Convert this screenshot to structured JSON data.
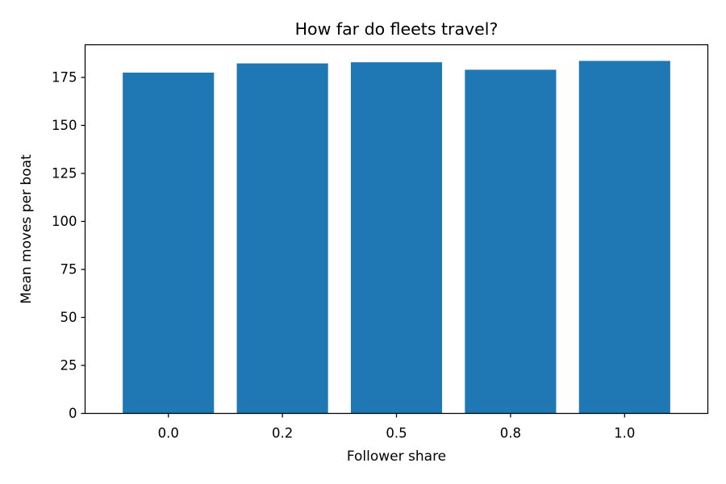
{
  "chart_data": {
    "type": "bar",
    "title": "How far do fleets travel?",
    "xlabel": "Follower share",
    "ylabel": "Mean moves per boat",
    "categories": [
      "0.0",
      "0.2",
      "0.5",
      "0.8",
      "1.0"
    ],
    "values": [
      177.5,
      182.3,
      182.9,
      179.0,
      183.6
    ],
    "ylim": [
      0,
      192
    ],
    "yticks": [
      0,
      25,
      50,
      75,
      100,
      125,
      150,
      175
    ],
    "grid": false,
    "legend": "none",
    "bar_color": "#1f77b4"
  }
}
